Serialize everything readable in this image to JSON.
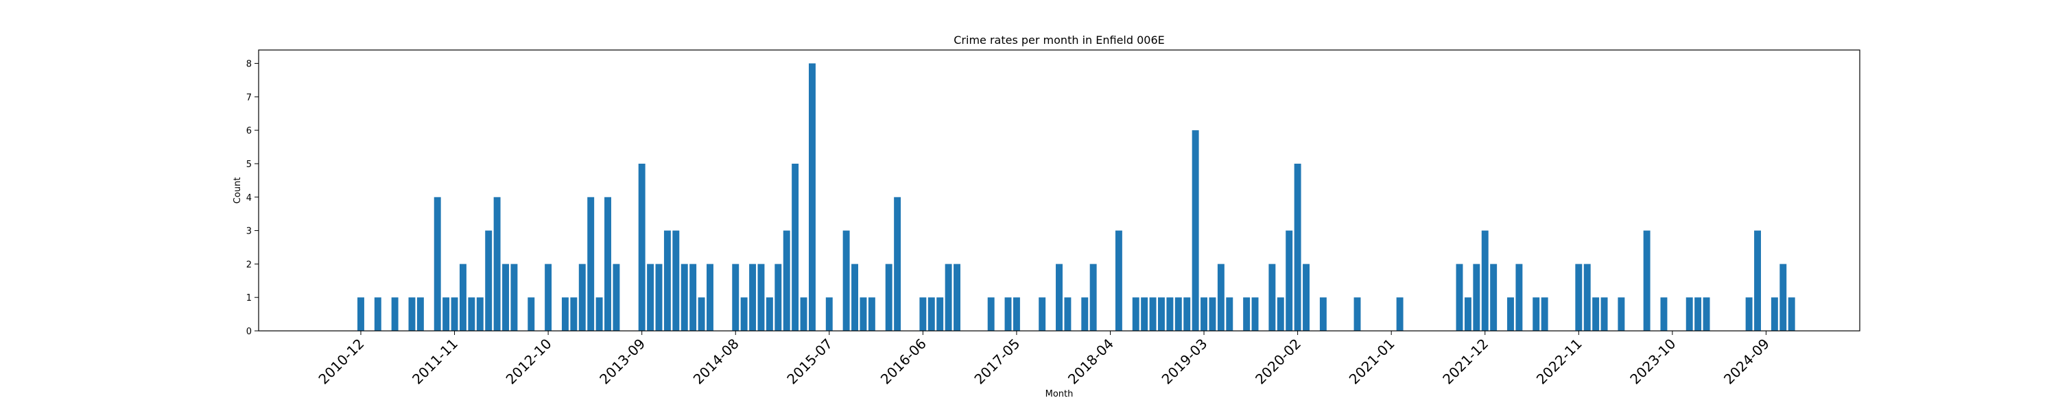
{
  "chart_data": {
    "type": "bar",
    "title": "Crime rates per month in Enfield 006E",
    "xlabel": "Month",
    "ylabel": "Count",
    "ylim": [
      0,
      8.4
    ],
    "yticks": [
      0,
      1,
      2,
      3,
      4,
      5,
      6,
      7,
      8
    ],
    "xtick_labels": [
      "2010-12",
      "2011-11",
      "2012-10",
      "2013-09",
      "2014-08",
      "2015-07",
      "2016-06",
      "2017-05",
      "2018-04",
      "2019-03",
      "2020-02",
      "2021-01",
      "2021-12",
      "2022-11",
      "2023-10",
      "2024-09"
    ],
    "xlim": [
      "2009-12",
      "2025-08"
    ],
    "grid": false,
    "color": "#1f77b4",
    "points": [
      [
        "2010-12",
        1
      ],
      [
        "2011-02",
        1
      ],
      [
        "2011-04",
        1
      ],
      [
        "2011-06",
        1
      ],
      [
        "2011-07",
        1
      ],
      [
        "2011-09",
        4
      ],
      [
        "2011-10",
        1
      ],
      [
        "2011-11",
        1
      ],
      [
        "2011-12",
        2
      ],
      [
        "2012-01",
        1
      ],
      [
        "2012-02",
        1
      ],
      [
        "2012-03",
        3
      ],
      [
        "2012-04",
        4
      ],
      [
        "2012-05",
        2
      ],
      [
        "2012-06",
        2
      ],
      [
        "2012-08",
        1
      ],
      [
        "2012-10",
        2
      ],
      [
        "2012-12",
        1
      ],
      [
        "2013-01",
        1
      ],
      [
        "2013-02",
        2
      ],
      [
        "2013-03",
        4
      ],
      [
        "2013-04",
        1
      ],
      [
        "2013-05",
        4
      ],
      [
        "2013-06",
        2
      ],
      [
        "2013-09",
        5
      ],
      [
        "2013-10",
        2
      ],
      [
        "2013-11",
        2
      ],
      [
        "2013-12",
        3
      ],
      [
        "2014-01",
        3
      ],
      [
        "2014-02",
        2
      ],
      [
        "2014-03",
        2
      ],
      [
        "2014-04",
        1
      ],
      [
        "2014-05",
        2
      ],
      [
        "2014-08",
        2
      ],
      [
        "2014-09",
        1
      ],
      [
        "2014-10",
        2
      ],
      [
        "2014-11",
        2
      ],
      [
        "2014-12",
        1
      ],
      [
        "2015-01",
        2
      ],
      [
        "2015-02",
        3
      ],
      [
        "2015-03",
        5
      ],
      [
        "2015-04",
        1
      ],
      [
        "2015-05",
        8
      ],
      [
        "2015-07",
        1
      ],
      [
        "2015-09",
        3
      ],
      [
        "2015-10",
        2
      ],
      [
        "2015-11",
        1
      ],
      [
        "2015-12",
        1
      ],
      [
        "2016-02",
        2
      ],
      [
        "2016-03",
        4
      ],
      [
        "2016-06",
        1
      ],
      [
        "2016-07",
        1
      ],
      [
        "2016-08",
        1
      ],
      [
        "2016-09",
        2
      ],
      [
        "2016-10",
        2
      ],
      [
        "2017-02",
        1
      ],
      [
        "2017-04",
        1
      ],
      [
        "2017-05",
        1
      ],
      [
        "2017-08",
        1
      ],
      [
        "2017-10",
        2
      ],
      [
        "2017-11",
        1
      ],
      [
        "2018-01",
        1
      ],
      [
        "2018-02",
        2
      ],
      [
        "2018-05",
        3
      ],
      [
        "2018-07",
        1
      ],
      [
        "2018-08",
        1
      ],
      [
        "2018-09",
        1
      ],
      [
        "2018-10",
        1
      ],
      [
        "2018-11",
        1
      ],
      [
        "2018-12",
        1
      ],
      [
        "2019-01",
        1
      ],
      [
        "2019-02",
        6
      ],
      [
        "2019-03",
        1
      ],
      [
        "2019-04",
        1
      ],
      [
        "2019-05",
        2
      ],
      [
        "2019-06",
        1
      ],
      [
        "2019-08",
        1
      ],
      [
        "2019-09",
        1
      ],
      [
        "2019-11",
        2
      ],
      [
        "2019-12",
        1
      ],
      [
        "2020-01",
        3
      ],
      [
        "2020-02",
        5
      ],
      [
        "2020-03",
        2
      ],
      [
        "2020-05",
        1
      ],
      [
        "2020-09",
        1
      ],
      [
        "2021-02",
        1
      ],
      [
        "2021-09",
        2
      ],
      [
        "2021-10",
        1
      ],
      [
        "2021-11",
        2
      ],
      [
        "2021-12",
        3
      ],
      [
        "2022-01",
        2
      ],
      [
        "2022-03",
        1
      ],
      [
        "2022-04",
        2
      ],
      [
        "2022-06",
        1
      ],
      [
        "2022-07",
        1
      ],
      [
        "2022-11",
        2
      ],
      [
        "2022-12",
        2
      ],
      [
        "2023-01",
        1
      ],
      [
        "2023-02",
        1
      ],
      [
        "2023-04",
        1
      ],
      [
        "2023-07",
        3
      ],
      [
        "2023-09",
        1
      ],
      [
        "2023-12",
        1
      ],
      [
        "2024-01",
        1
      ],
      [
        "2024-02",
        1
      ],
      [
        "2024-07",
        1
      ],
      [
        "2024-08",
        3
      ],
      [
        "2024-10",
        1
      ],
      [
        "2024-11",
        2
      ],
      [
        "2024-12",
        1
      ]
    ]
  }
}
